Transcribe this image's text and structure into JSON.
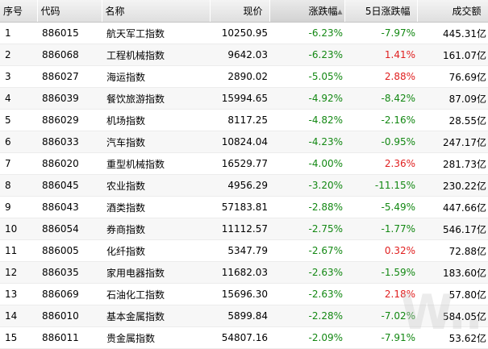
{
  "columns": {
    "index": "序号",
    "code": "代码",
    "name": "名称",
    "price": "现价",
    "change": "涨跌幅",
    "change5d": "5日涨跌幅",
    "amount": "成交额"
  },
  "sort_icon": "▲",
  "colors": {
    "negative": "#138813",
    "positive": "#e01f1f"
  },
  "rows": [
    {
      "idx": "1",
      "code": "886015",
      "name": "航天军工指数",
      "price": "10250.95",
      "chg": "-6.23%",
      "chg5": "-7.97%",
      "amt": "445.31亿"
    },
    {
      "idx": "2",
      "code": "886068",
      "name": "工程机械指数",
      "price": "9642.03",
      "chg": "-6.23%",
      "chg5": "1.41%",
      "amt": "161.07亿"
    },
    {
      "idx": "3",
      "code": "886027",
      "name": "海运指数",
      "price": "2890.02",
      "chg": "-5.05%",
      "chg5": "2.88%",
      "amt": "76.69亿"
    },
    {
      "idx": "4",
      "code": "886039",
      "name": "餐饮旅游指数",
      "price": "15994.65",
      "chg": "-4.92%",
      "chg5": "-8.42%",
      "amt": "87.09亿"
    },
    {
      "idx": "5",
      "code": "886029",
      "name": "机场指数",
      "price": "8117.25",
      "chg": "-4.82%",
      "chg5": "-2.16%",
      "amt": "28.55亿"
    },
    {
      "idx": "6",
      "code": "886033",
      "name": "汽车指数",
      "price": "10824.04",
      "chg": "-4.23%",
      "chg5": "-0.95%",
      "amt": "247.17亿"
    },
    {
      "idx": "7",
      "code": "886020",
      "name": "重型机械指数",
      "price": "16529.77",
      "chg": "-4.00%",
      "chg5": "2.36%",
      "amt": "281.73亿"
    },
    {
      "idx": "8",
      "code": "886045",
      "name": "农业指数",
      "price": "4956.29",
      "chg": "-3.20%",
      "chg5": "-11.15%",
      "amt": "230.22亿"
    },
    {
      "idx": "9",
      "code": "886043",
      "name": "酒类指数",
      "price": "57183.81",
      "chg": "-2.88%",
      "chg5": "-5.49%",
      "amt": "447.66亿"
    },
    {
      "idx": "10",
      "code": "886054",
      "name": "券商指数",
      "price": "11112.57",
      "chg": "-2.75%",
      "chg5": "-1.77%",
      "amt": "546.17亿"
    },
    {
      "idx": "11",
      "code": "886005",
      "name": "化纤指数",
      "price": "5347.79",
      "chg": "-2.67%",
      "chg5": "0.32%",
      "amt": "72.88亿"
    },
    {
      "idx": "12",
      "code": "886035",
      "name": "家用电器指数",
      "price": "11682.03",
      "chg": "-2.63%",
      "chg5": "-1.59%",
      "amt": "183.60亿"
    },
    {
      "idx": "13",
      "code": "886069",
      "name": "石油化工指数",
      "price": "15696.30",
      "chg": "-2.63%",
      "chg5": "2.18%",
      "amt": "57.80亿"
    },
    {
      "idx": "14",
      "code": "886010",
      "name": "基本金属指数",
      "price": "5899.84",
      "chg": "-2.28%",
      "chg5": "-7.02%",
      "amt": "584.05亿"
    },
    {
      "idx": "15",
      "code": "886011",
      "name": "贵金属指数",
      "price": "54807.16",
      "chg": "-2.09%",
      "chg5": "-7.91%",
      "amt": "53.62亿"
    }
  ]
}
